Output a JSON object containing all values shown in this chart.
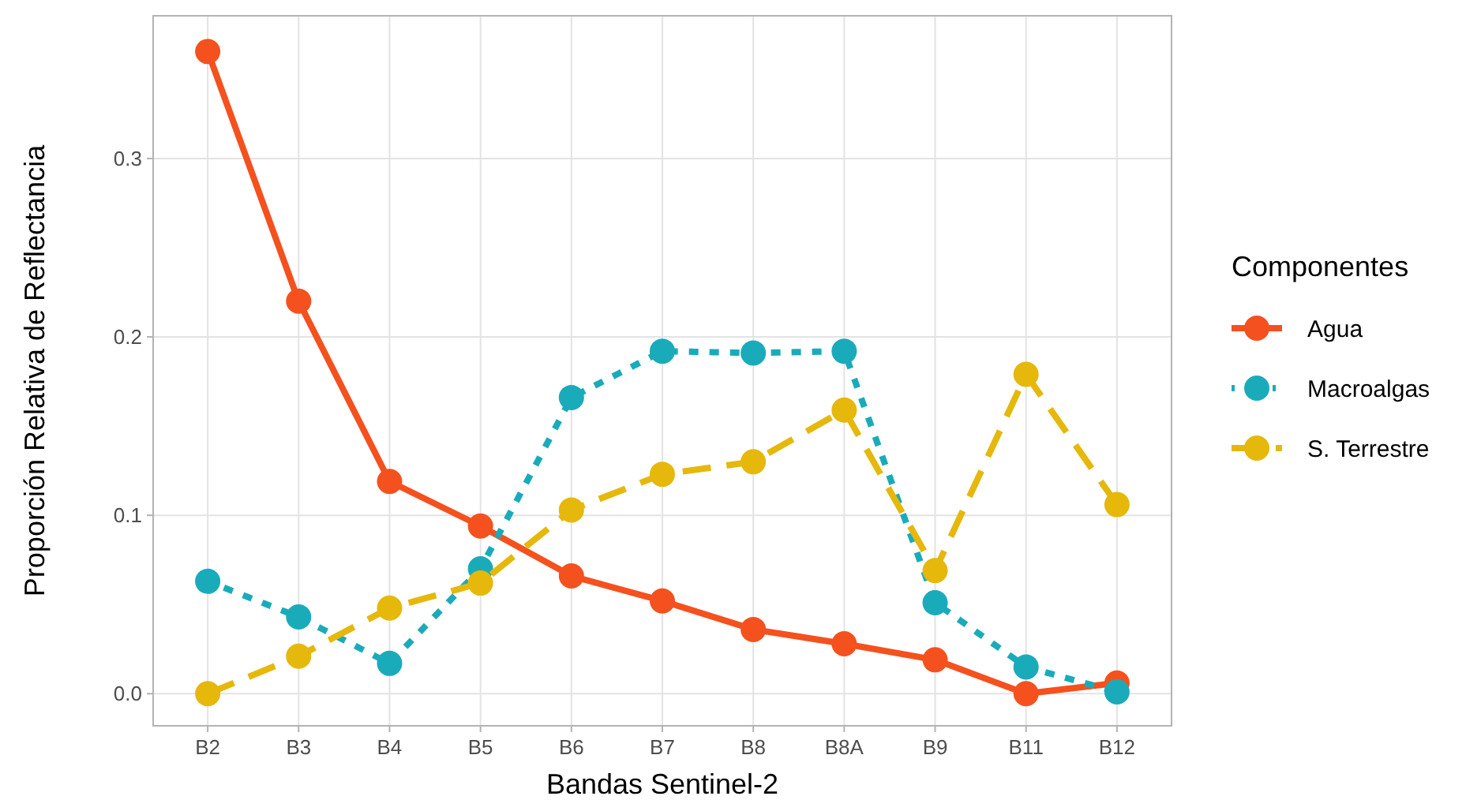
{
  "chart_data": {
    "type": "line",
    "xlabel": "Bandas Sentinel-2",
    "ylabel": "Proporción Relativa de Reflectancia",
    "legend_title": "Componentes",
    "categories": [
      "B2",
      "B3",
      "B4",
      "B5",
      "B6",
      "B7",
      "B8",
      "B8A",
      "B9",
      "B11",
      "B12"
    ],
    "series": [
      {
        "name": "Agua",
        "color": "#f4511e",
        "line_style": "solid",
        "values": [
          0.36,
          0.22,
          0.119,
          0.094,
          0.066,
          0.052,
          0.036,
          0.028,
          0.019,
          0.0,
          0.006
        ]
      },
      {
        "name": "Macroalgas",
        "color": "#1aabbb",
        "line_style": "dotted",
        "values": [
          0.063,
          0.043,
          0.017,
          0.07,
          0.166,
          0.192,
          0.191,
          0.192,
          0.051,
          0.015,
          0.001
        ]
      },
      {
        "name": "S. Terrestre",
        "color": "#e5b80b",
        "line_style": "dashed",
        "values": [
          0.0,
          0.021,
          0.048,
          0.062,
          0.103,
          0.123,
          0.13,
          0.159,
          0.069,
          0.179,
          0.106
        ]
      }
    ],
    "ylim": [
      -0.018,
      0.38
    ],
    "yticks": [
      {
        "value": 0,
        "label": "0.0"
      },
      0.1,
      0.2,
      0.3
    ],
    "grid": true,
    "legend": "right",
    "marker": "circle"
  }
}
